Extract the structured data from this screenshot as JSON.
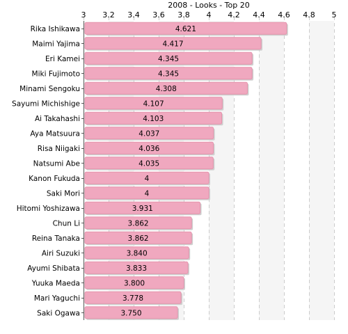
{
  "chart_data": {
    "type": "bar",
    "orientation": "horizontal",
    "title": "2008 - Looks - Top 20",
    "xlim": [
      3,
      5
    ],
    "x_ticks": [
      3,
      3.2,
      3.4,
      3.6,
      3.8,
      4,
      4.2,
      4.4,
      4.6,
      4.8,
      5
    ],
    "categories": [
      "Rika Ishikawa",
      "Maimi Yajima",
      "Eri Kamei",
      "Miki Fujimoto",
      "Minami Sengoku",
      "Sayumi Michishige",
      "Ai Takahashi",
      "Aya Matsuura",
      "Risa Niigaki",
      "Natsumi Abe",
      "Kanon Fukuda",
      "Saki Mori",
      "Hitomi Yoshizawa",
      "Chun Li",
      "Reina Tanaka",
      "Airi Suzuki",
      "Ayumi Shibata",
      "Yuuka Maeda",
      "Mari Yaguchi",
      "Saki Ogawa"
    ],
    "values": [
      4.621,
      4.417,
      4.345,
      4.345,
      4.308,
      4.107,
      4.103,
      4.037,
      4.036,
      4.035,
      4,
      4,
      3.931,
      3.862,
      3.862,
      3.84,
      3.833,
      3.8,
      3.778,
      3.75
    ],
    "value_labels": [
      "4.621",
      "4.417",
      "4.345",
      "4.345",
      "4.308",
      "4.107",
      "4.103",
      "4.037",
      "4.036",
      "4.035",
      "4",
      "4",
      "3.931",
      "3.862",
      "3.862",
      "3.840",
      "3.833",
      "3.800",
      "3.778",
      "3.750"
    ],
    "bar_color": "#f0a8bf",
    "bar_edge_color": "#e592ac",
    "shadow_color": "#cfcfcf",
    "grid": true,
    "legend": "none"
  }
}
